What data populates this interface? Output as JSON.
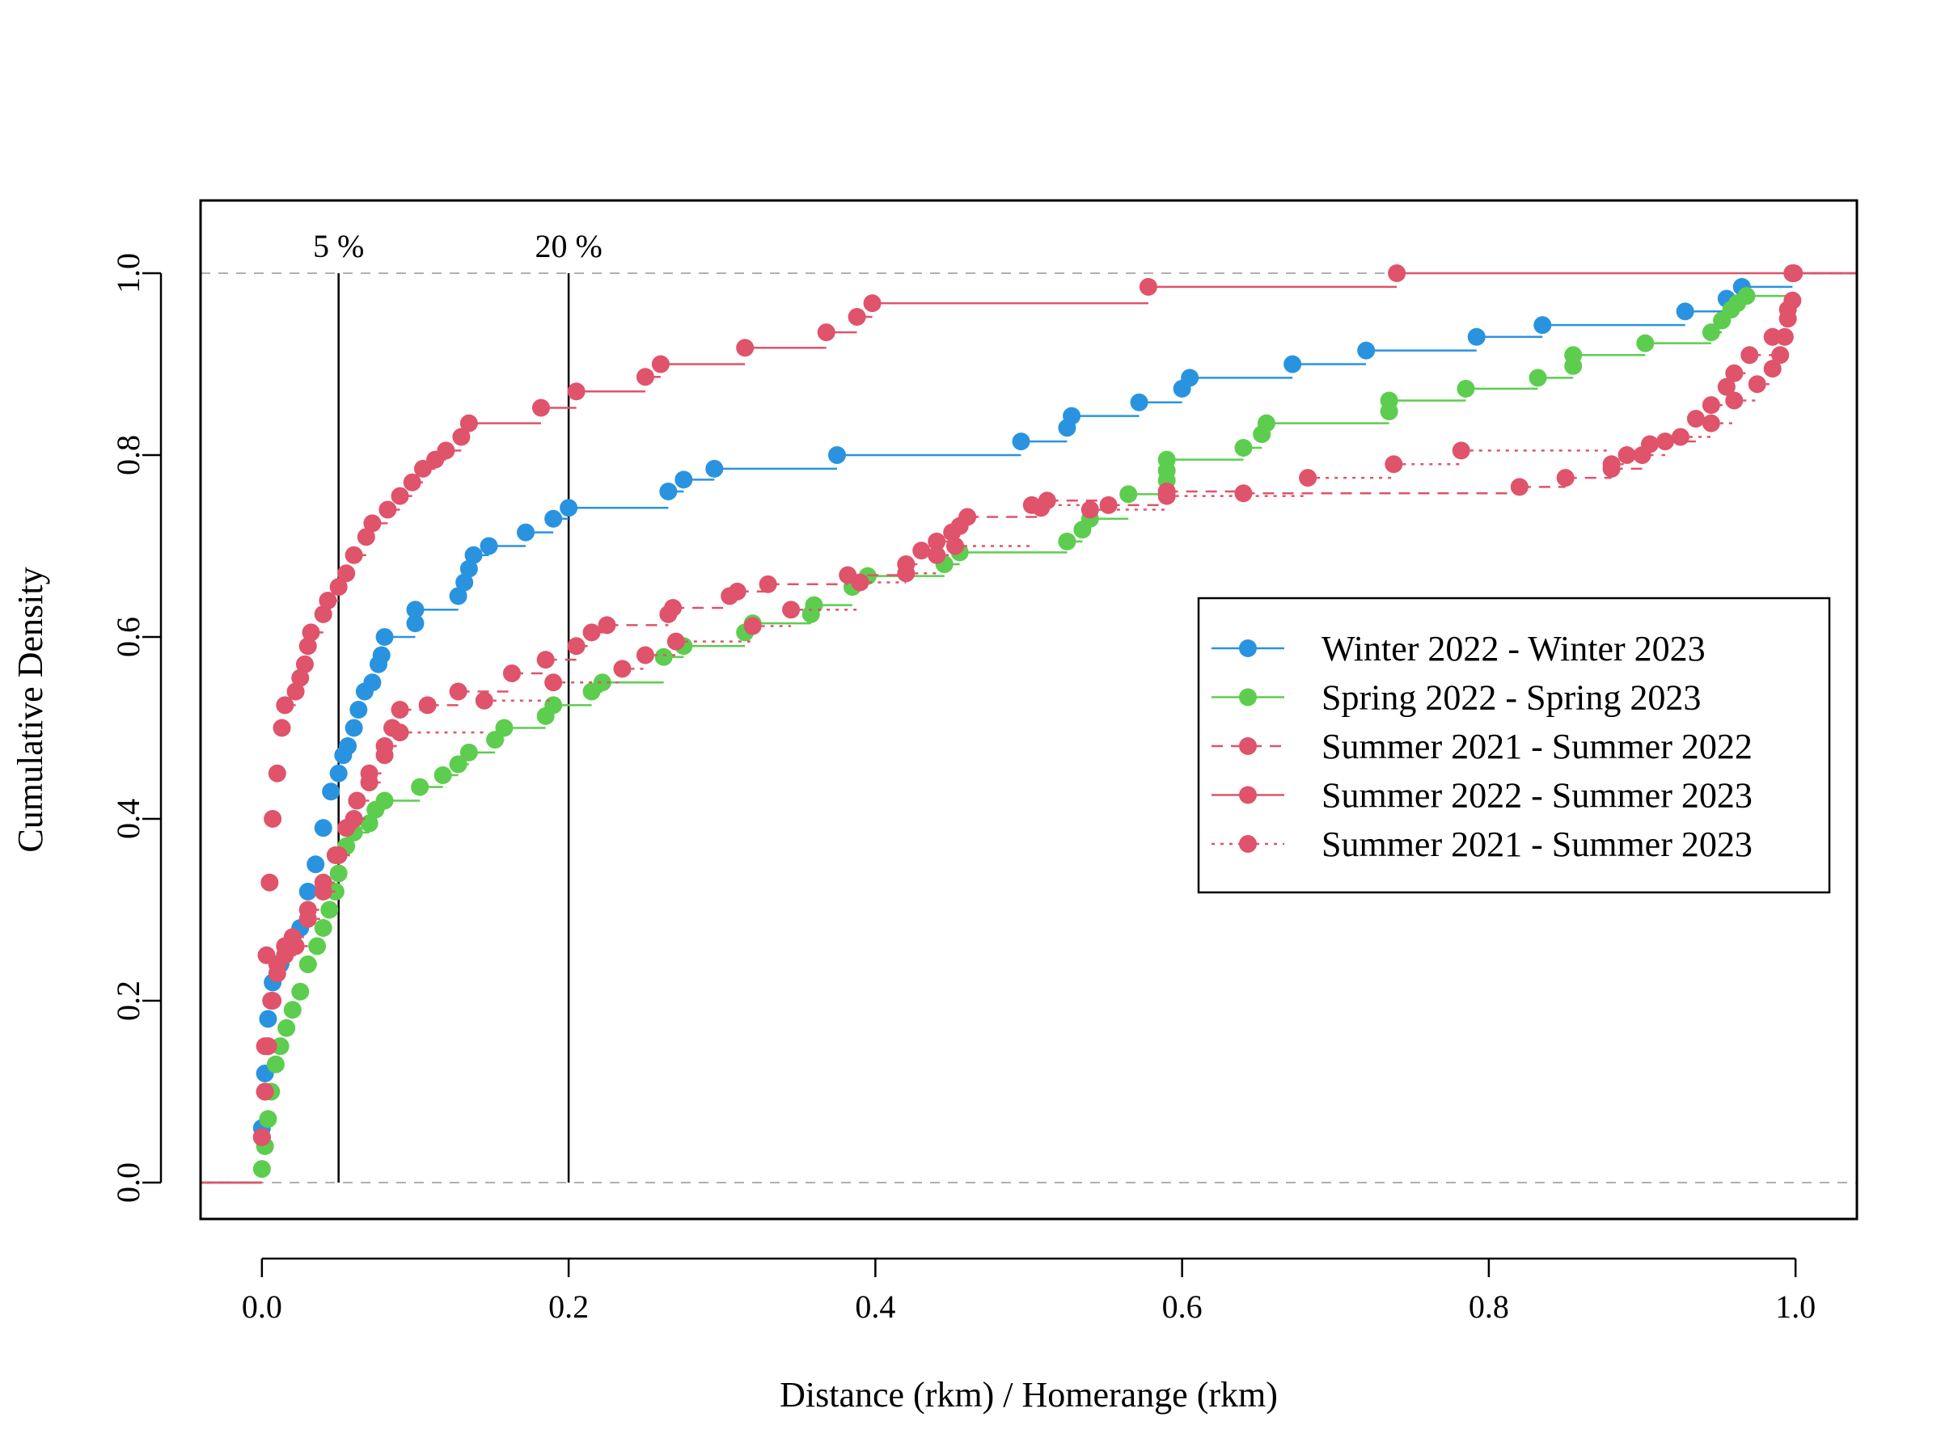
{
  "chart_data": {
    "type": "line",
    "step": true,
    "xlabel": "Distance (rkm) / Homerange (rkm)",
    "ylabel": "Cumulative Density",
    "xlim": [
      -0.04,
      1.04
    ],
    "ylim": [
      -0.04,
      1.08
    ],
    "x_ticks": [
      "0.0",
      "0.2",
      "0.4",
      "0.6",
      "0.8",
      "1.0"
    ],
    "y_ticks": [
      "0.0",
      "0.2",
      "0.4",
      "0.6",
      "0.8",
      "1.0"
    ],
    "reference_lines": [
      {
        "axis": "y",
        "value": 0,
        "color": "#b0b0b0",
        "style": "dashed"
      },
      {
        "axis": "y",
        "value": 1,
        "color": "#b0b0b0",
        "style": "dashed"
      }
    ],
    "vertical_markers": [
      {
        "x": 0.05,
        "label": "5 %"
      },
      {
        "x": 0.2,
        "label": "20 %"
      }
    ],
    "legend_position": "right",
    "legend": [
      {
        "label": "Winter 2022 - Winter 2023",
        "color": "#2a93e0",
        "dash": "solid"
      },
      {
        "label": "Spring 2022 - Spring 2023",
        "color": "#5dcd4f",
        "dash": "solid"
      },
      {
        "label": "Summer 2021 - Summer 2022",
        "color": "#df536b",
        "dash": "dashed"
      },
      {
        "label": "Summer 2022 - Summer 2023",
        "color": "#df536b",
        "dash": "solid"
      },
      {
        "label": "Summer 2021 - Summer 2023",
        "color": "#df536b",
        "dash": "dotted"
      }
    ],
    "series": [
      {
        "name": "Winter 2022 - Winter 2023",
        "color": "#2a93e0",
        "dash": "solid",
        "points": [
          [
            0,
            0.06
          ],
          [
            0.002,
            0.12
          ],
          [
            0.004,
            0.18
          ],
          [
            0.007,
            0.22
          ],
          [
            0.012,
            0.24
          ],
          [
            0.018,
            0.26
          ],
          [
            0.025,
            0.28
          ],
          [
            0.03,
            0.32
          ],
          [
            0.035,
            0.35
          ],
          [
            0.04,
            0.39
          ],
          [
            0.045,
            0.43
          ],
          [
            0.05,
            0.45
          ],
          [
            0.053,
            0.47
          ],
          [
            0.056,
            0.48
          ],
          [
            0.06,
            0.5
          ],
          [
            0.063,
            0.52
          ],
          [
            0.067,
            0.54
          ],
          [
            0.072,
            0.55
          ],
          [
            0.076,
            0.57
          ],
          [
            0.078,
            0.58
          ],
          [
            0.08,
            0.6
          ],
          [
            0.1,
            0.615
          ],
          [
            0.1,
            0.63
          ],
          [
            0.128,
            0.645
          ],
          [
            0.132,
            0.66
          ],
          [
            0.135,
            0.675
          ],
          [
            0.138,
            0.69
          ],
          [
            0.148,
            0.7
          ],
          [
            0.172,
            0.715
          ],
          [
            0.19,
            0.73
          ],
          [
            0.2,
            0.742
          ],
          [
            0.265,
            0.76
          ],
          [
            0.275,
            0.773
          ],
          [
            0.295,
            0.785
          ],
          [
            0.375,
            0.8
          ],
          [
            0.495,
            0.815
          ],
          [
            0.525,
            0.83
          ],
          [
            0.528,
            0.843
          ],
          [
            0.572,
            0.858
          ],
          [
            0.6,
            0.873
          ],
          [
            0.605,
            0.885
          ],
          [
            0.672,
            0.9
          ],
          [
            0.72,
            0.915
          ],
          [
            0.792,
            0.93
          ],
          [
            0.835,
            0.943
          ],
          [
            0.928,
            0.958
          ],
          [
            0.955,
            0.972
          ],
          [
            0.965,
            0.985
          ],
          [
            0.998,
            1.0
          ]
        ]
      },
      {
        "name": "Spring 2022 - Spring 2023",
        "color": "#5dcd4f",
        "dash": "solid",
        "points": [
          [
            0,
            0.015
          ],
          [
            0.002,
            0.04
          ],
          [
            0.004,
            0.07
          ],
          [
            0.006,
            0.1
          ],
          [
            0.009,
            0.13
          ],
          [
            0.012,
            0.15
          ],
          [
            0.016,
            0.17
          ],
          [
            0.02,
            0.19
          ],
          [
            0.025,
            0.21
          ],
          [
            0.03,
            0.24
          ],
          [
            0.036,
            0.26
          ],
          [
            0.04,
            0.28
          ],
          [
            0.044,
            0.3
          ],
          [
            0.048,
            0.32
          ],
          [
            0.05,
            0.34
          ],
          [
            0.055,
            0.37
          ],
          [
            0.06,
            0.385
          ],
          [
            0.07,
            0.395
          ],
          [
            0.074,
            0.41
          ],
          [
            0.08,
            0.42
          ],
          [
            0.103,
            0.435
          ],
          [
            0.118,
            0.448
          ],
          [
            0.128,
            0.46
          ],
          [
            0.135,
            0.473
          ],
          [
            0.152,
            0.487
          ],
          [
            0.158,
            0.5
          ],
          [
            0.185,
            0.513
          ],
          [
            0.19,
            0.525
          ],
          [
            0.215,
            0.54
          ],
          [
            0.222,
            0.55
          ],
          [
            0.262,
            0.578
          ],
          [
            0.275,
            0.59
          ],
          [
            0.315,
            0.605
          ],
          [
            0.32,
            0.615
          ],
          [
            0.358,
            0.625
          ],
          [
            0.36,
            0.635
          ],
          [
            0.385,
            0.655
          ],
          [
            0.395,
            0.667
          ],
          [
            0.445,
            0.68
          ],
          [
            0.455,
            0.693
          ],
          [
            0.525,
            0.705
          ],
          [
            0.535,
            0.718
          ],
          [
            0.54,
            0.73
          ],
          [
            0.565,
            0.757
          ],
          [
            0.59,
            0.772
          ],
          [
            0.59,
            0.783
          ],
          [
            0.59,
            0.795
          ],
          [
            0.64,
            0.808
          ],
          [
            0.652,
            0.823
          ],
          [
            0.655,
            0.835
          ],
          [
            0.735,
            0.848
          ],
          [
            0.735,
            0.86
          ],
          [
            0.785,
            0.873
          ],
          [
            0.832,
            0.885
          ],
          [
            0.855,
            0.898
          ],
          [
            0.855,
            0.91
          ],
          [
            0.902,
            0.923
          ],
          [
            0.945,
            0.935
          ],
          [
            0.952,
            0.948
          ],
          [
            0.958,
            0.96
          ],
          [
            0.962,
            0.967
          ],
          [
            0.968,
            0.975
          ],
          [
            0.998,
            1.0
          ]
        ]
      },
      {
        "name": "Summer 2021 - Summer 2022",
        "color": "#df536b",
        "dash": "dashed",
        "points": [
          [
            0,
            0.05
          ],
          [
            0.002,
            0.1
          ],
          [
            0.004,
            0.15
          ],
          [
            0.006,
            0.2
          ],
          [
            0.01,
            0.24
          ],
          [
            0.015,
            0.26
          ],
          [
            0.02,
            0.27
          ],
          [
            0.03,
            0.3
          ],
          [
            0.04,
            0.33
          ],
          [
            0.05,
            0.36
          ],
          [
            0.06,
            0.4
          ],
          [
            0.07,
            0.44
          ],
          [
            0.08,
            0.47
          ],
          [
            0.085,
            0.5
          ],
          [
            0.09,
            0.52
          ],
          [
            0.108,
            0.525
          ],
          [
            0.128,
            0.54
          ],
          [
            0.163,
            0.56
          ],
          [
            0.185,
            0.575
          ],
          [
            0.205,
            0.59
          ],
          [
            0.215,
            0.605
          ],
          [
            0.225,
            0.613
          ],
          [
            0.265,
            0.625
          ],
          [
            0.268,
            0.632
          ],
          [
            0.305,
            0.645
          ],
          [
            0.31,
            0.65
          ],
          [
            0.33,
            0.658
          ],
          [
            0.382,
            0.668
          ],
          [
            0.42,
            0.68
          ],
          [
            0.43,
            0.695
          ],
          [
            0.44,
            0.705
          ],
          [
            0.45,
            0.715
          ],
          [
            0.455,
            0.722
          ],
          [
            0.46,
            0.732
          ],
          [
            0.508,
            0.742
          ],
          [
            0.512,
            0.75
          ],
          [
            0.552,
            0.745
          ],
          [
            0.59,
            0.76
          ],
          [
            0.64,
            0.758
          ],
          [
            0.82,
            0.765
          ],
          [
            0.85,
            0.775
          ],
          [
            0.88,
            0.785
          ],
          [
            0.9,
            0.8
          ],
          [
            0.915,
            0.815
          ],
          [
            0.935,
            0.84
          ],
          [
            0.945,
            0.855
          ],
          [
            0.955,
            0.875
          ],
          [
            0.96,
            0.89
          ],
          [
            0.97,
            0.91
          ],
          [
            0.985,
            0.93
          ],
          [
            0.995,
            0.96
          ],
          [
            0.998,
            1.0
          ]
        ]
      },
      {
        "name": "Summer 2022 - Summer 2023",
        "color": "#df536b",
        "dash": "solid",
        "points": [
          [
            0,
            0.05
          ],
          [
            0.002,
            0.15
          ],
          [
            0.003,
            0.25
          ],
          [
            0.005,
            0.33
          ],
          [
            0.007,
            0.4
          ],
          [
            0.01,
            0.45
          ],
          [
            0.013,
            0.5
          ],
          [
            0.015,
            0.525
          ],
          [
            0.022,
            0.54
          ],
          [
            0.025,
            0.555
          ],
          [
            0.028,
            0.57
          ],
          [
            0.03,
            0.59
          ],
          [
            0.032,
            0.605
          ],
          [
            0.04,
            0.625
          ],
          [
            0.043,
            0.64
          ],
          [
            0.05,
            0.655
          ],
          [
            0.055,
            0.67
          ],
          [
            0.06,
            0.69
          ],
          [
            0.068,
            0.71
          ],
          [
            0.072,
            0.725
          ],
          [
            0.082,
            0.74
          ],
          [
            0.09,
            0.755
          ],
          [
            0.098,
            0.77
          ],
          [
            0.105,
            0.785
          ],
          [
            0.113,
            0.795
          ],
          [
            0.12,
            0.805
          ],
          [
            0.13,
            0.82
          ],
          [
            0.135,
            0.835
          ],
          [
            0.182,
            0.852
          ],
          [
            0.205,
            0.87
          ],
          [
            0.25,
            0.886
          ],
          [
            0.26,
            0.9
          ],
          [
            0.315,
            0.918
          ],
          [
            0.368,
            0.935
          ],
          [
            0.388,
            0.952
          ],
          [
            0.398,
            0.967
          ],
          [
            0.578,
            0.985
          ],
          [
            0.74,
            1.0
          ]
        ]
      },
      {
        "name": "Summer 2021 - Summer 2023",
        "color": "#df536b",
        "dash": "dotted",
        "points": [
          [
            0,
            0.05
          ],
          [
            0.002,
            0.1
          ],
          [
            0.004,
            0.15
          ],
          [
            0.007,
            0.2
          ],
          [
            0.01,
            0.23
          ],
          [
            0.015,
            0.25
          ],
          [
            0.022,
            0.26
          ],
          [
            0.03,
            0.29
          ],
          [
            0.04,
            0.32
          ],
          [
            0.048,
            0.36
          ],
          [
            0.055,
            0.39
          ],
          [
            0.062,
            0.42
          ],
          [
            0.07,
            0.45
          ],
          [
            0.08,
            0.48
          ],
          [
            0.09,
            0.495
          ],
          [
            0.145,
            0.53
          ],
          [
            0.19,
            0.55
          ],
          [
            0.235,
            0.565
          ],
          [
            0.25,
            0.58
          ],
          [
            0.27,
            0.595
          ],
          [
            0.32,
            0.612
          ],
          [
            0.345,
            0.63
          ],
          [
            0.39,
            0.66
          ],
          [
            0.42,
            0.67
          ],
          [
            0.44,
            0.69
          ],
          [
            0.452,
            0.7
          ],
          [
            0.502,
            0.745
          ],
          [
            0.54,
            0.74
          ],
          [
            0.59,
            0.755
          ],
          [
            0.682,
            0.775
          ],
          [
            0.738,
            0.79
          ],
          [
            0.782,
            0.805
          ],
          [
            0.88,
            0.79
          ],
          [
            0.89,
            0.8
          ],
          [
            0.905,
            0.812
          ],
          [
            0.925,
            0.82
          ],
          [
            0.945,
            0.835
          ],
          [
            0.96,
            0.86
          ],
          [
            0.975,
            0.878
          ],
          [
            0.985,
            0.895
          ],
          [
            0.99,
            0.91
          ],
          [
            0.993,
            0.93
          ],
          [
            0.995,
            0.95
          ],
          [
            0.998,
            0.97
          ],
          [
            0.999,
            1.0
          ]
        ]
      }
    ]
  }
}
